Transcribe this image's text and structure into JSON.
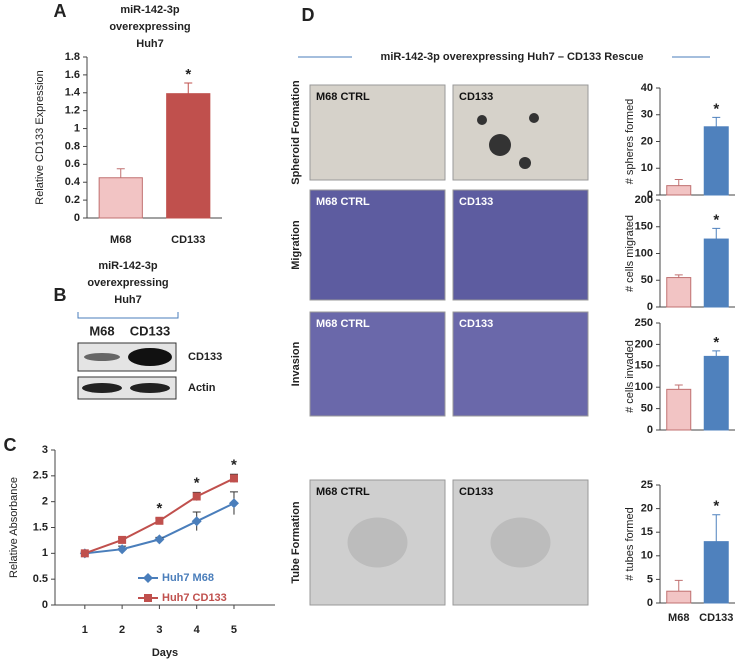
{
  "chart_data": [
    {
      "type": "bar",
      "panel": "A",
      "title": [
        "miR-142-3p",
        "overexpressing",
        "Huh7"
      ],
      "y_label": "Relative CD133 Expression",
      "categories": [
        "M68",
        "CD133"
      ],
      "values": [
        0.45,
        1.39
      ],
      "errors": [
        0.1,
        0.12
      ],
      "significance": [
        null,
        "*"
      ],
      "colors": [
        "#f2c4c4",
        "#c0504d"
      ],
      "ylim": [
        0,
        1.8
      ],
      "yticks": [
        0,
        0.2,
        0.4,
        0.6,
        0.8,
        1,
        1.2,
        1.4,
        1.6,
        1.8
      ]
    },
    {
      "type": "line",
      "panel": "C",
      "x_label": "Days",
      "y_label": "Relative Absorbance",
      "x": [
        1,
        2,
        3,
        4,
        5
      ],
      "xlim": [
        0.2,
        6.1
      ],
      "xticks": [
        1,
        2,
        3,
        4,
        5
      ],
      "ylim": [
        0,
        3
      ],
      "yticks": [
        0,
        0.5,
        1,
        1.5,
        2,
        2.5,
        3
      ],
      "series": [
        {
          "name": "Huh7 M68",
          "color": "#4a7ebb",
          "marker": "diamond",
          "values": [
            1,
            1.08,
            1.27,
            1.62,
            1.97
          ],
          "errors": [
            0.03,
            0.06,
            0.04,
            0.18,
            0.22
          ]
        },
        {
          "name": "Huh7 CD133",
          "color": "#c0504d",
          "marker": "square",
          "values": [
            1,
            1.26,
            1.63,
            2.1,
            2.45
          ],
          "errors": [
            0.02,
            0.03,
            0.05,
            0.08,
            0.08
          ]
        }
      ],
      "significance": [
        null,
        null,
        "*",
        "*",
        "*"
      ]
    },
    {
      "type": "bar",
      "y_label": "# spheres formed",
      "categories": [
        null,
        null
      ],
      "values": [
        3.5,
        25.5
      ],
      "errors": [
        2.3,
        3.5
      ],
      "significance": [
        null,
        "*"
      ],
      "colors": [
        "#f2c4c4",
        "#4f81bd"
      ],
      "ylim": [
        0,
        40
      ],
      "yticks": [
        0,
        10,
        20,
        30,
        40
      ]
    },
    {
      "type": "bar",
      "y_label": "# cells migrated",
      "categories": [
        null,
        null
      ],
      "values": [
        55,
        127
      ],
      "errors": [
        5,
        20
      ],
      "significance": [
        null,
        "*"
      ],
      "colors": [
        "#f2c4c4",
        "#4f81bd"
      ],
      "ylim": [
        0,
        200
      ],
      "yticks": [
        0,
        50,
        100,
        150,
        200
      ]
    },
    {
      "type": "bar",
      "y_label": "# cells invaded",
      "categories": [
        null,
        null
      ],
      "values": [
        95,
        172
      ],
      "errors": [
        10,
        13
      ],
      "significance": [
        null,
        "*"
      ],
      "colors": [
        "#f2c4c4",
        "#4f81bd"
      ],
      "ylim": [
        0,
        250
      ],
      "yticks": [
        0,
        50,
        100,
        150,
        200,
        250
      ]
    },
    {
      "type": "bar",
      "y_label": "# tubes formed",
      "categories": [
        "M68",
        "CD133"
      ],
      "values": [
        2.5,
        13
      ],
      "errors": [
        2.3,
        5.7
      ],
      "significance": [
        null,
        "*"
      ],
      "colors": [
        "#f2c4c4",
        "#4f81bd"
      ],
      "ylim": [
        0,
        25
      ],
      "yticks": [
        0,
        5,
        10,
        15,
        20,
        25
      ]
    }
  ],
  "panel_b": {
    "label": "B",
    "title": [
      "miR-142-3p",
      "overexpressing",
      "Huh7"
    ],
    "lanes": [
      "M68",
      "CD133"
    ],
    "bands": [
      "CD133",
      "Actin"
    ]
  },
  "panel_d": {
    "label": "D",
    "title": "miR-142-3p overexpressing Huh7 – CD133 Rescue",
    "rows": [
      {
        "name": "Spheroid Formation",
        "images": [
          "M68 CTRL",
          "CD133"
        ]
      },
      {
        "name": "Migration",
        "images": [
          "M68 CTRL",
          "CD133"
        ]
      },
      {
        "name": "Invasion",
        "images": [
          "M68 CTRL",
          "CD133"
        ]
      },
      {
        "name": "Tube Formation",
        "images": [
          "M68 CTRL",
          "CD133"
        ]
      }
    ]
  }
}
